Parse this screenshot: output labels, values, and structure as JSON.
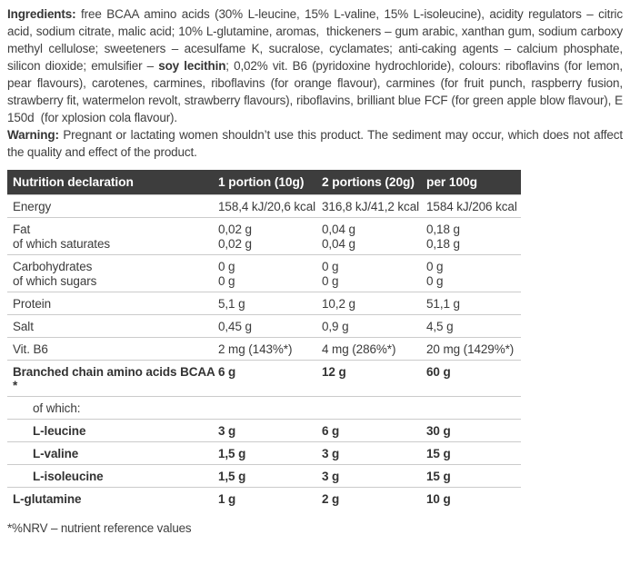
{
  "ingredients": {
    "segments": [
      {
        "bold": true,
        "text": "Ingredients:"
      },
      {
        "bold": false,
        "text": " free BCAA amino acids (30% L-leucine, 15% L-valine, 15% L-isoleucine), acidity regulators – citric acid, sodium citrate, malic acid; 10% L-glutamine, aromas,  thickeners – gum arabic, xanthan gum, sodium carboxy methyl cellulose; sweeteners – acesulfame K, sucralose, cyclamates; anti-caking agents – calcium phosphate, silicon dioxide; emulsifier – "
      },
      {
        "bold": true,
        "text": "soy lecithin"
      },
      {
        "bold": false,
        "text": "; 0,02% vit. B6 (pyridoxine hydrochloride), colours: riboflavins (for lemon, pear flavours), carotenes, carmines, riboflavins (for orange flavour), carmines (for fruit punch, raspberry fusion, strawberry fit, watermelon revolt, strawberry flavours), riboflavins, brilliant blue FCF (for green apple blow flavour), E 150d  (for xplosion cola flavour)."
      }
    ]
  },
  "warning": {
    "label": "Warning:",
    "text": " Pregnant or lactating women shouldn’t use this product. The sediment may occur, which does not affect the quality and effect of the product."
  },
  "table": {
    "headers": [
      "Nutrition declaration",
      "1 portion (10g)",
      "2 portions (20g)",
      "per 100g"
    ],
    "rows": [
      {
        "label": "Energy",
        "p1": "158,4 kJ/20,6 kcal",
        "p2": "316,8 kJ/41,2 kcal",
        "p100": "1584 kJ/206 kcal"
      },
      {
        "label": "Fat",
        "p1": "0,02 g",
        "p2": "0,04 g",
        "p100": "0,18 g"
      },
      {
        "label": "of which saturates",
        "p1": "0,02 g",
        "p2": "0,04 g",
        "p100": "0,18 g"
      },
      {
        "label": "Carbohydrates",
        "p1": "0 g",
        "p2": "0 g",
        "p100": "0 g"
      },
      {
        "label": "of which sugars",
        "p1": "0 g",
        "p2": "0 g",
        "p100": "0 g"
      },
      {
        "label": "Protein",
        "p1": "5,1 g",
        "p2": "10,2 g",
        "p100": "51,1 g"
      },
      {
        "label": "Salt",
        "p1": "0,45 g",
        "p2": "0,9 g",
        "p100": "4,5 g"
      },
      {
        "label": "Vit. B6",
        "p1": "2 mg (143%*)",
        "p2": "4 mg (286%*)",
        "p100": "20 mg (1429%*)"
      },
      {
        "label": "Branched chain amino acids BCAA *",
        "p1": "6 g",
        "p2": "12 g",
        "p100": "60 g"
      },
      {
        "label": "of which:",
        "p1": "",
        "p2": "",
        "p100": ""
      },
      {
        "label": "L-leucine",
        "p1": "3 g",
        "p2": "6 g",
        "p100": "30 g"
      },
      {
        "label": "L-valine",
        "p1": "1,5 g",
        "p2": "3 g",
        "p100": "15 g"
      },
      {
        "label": "L-isoleucine",
        "p1": "1,5 g",
        "p2": "3 g",
        "p100": "15 g"
      },
      {
        "label": "L-glutamine",
        "p1": "1 g",
        "p2": "2 g",
        "p100": "10 g"
      }
    ]
  },
  "footnote": "*%NRV – nutrient reference values",
  "colors": {
    "header_bg": "#3d3d3d",
    "header_text": "#ffffff",
    "body_text": "#3f3f3f",
    "divider": "#cbcbcb"
  }
}
